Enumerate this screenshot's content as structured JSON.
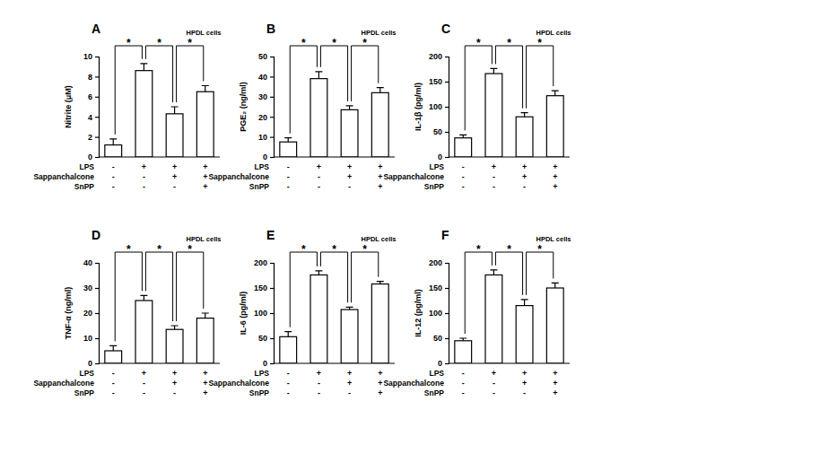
{
  "chart_data": [
    {
      "type": "bar",
      "panel": "A",
      "annotation": "HPDL cells",
      "y_label": "Nitrite (μM)",
      "values": [
        1.2,
        8.6,
        4.3,
        6.5
      ],
      "errors": [
        0.6,
        0.7,
        0.7,
        0.6
      ],
      "ylim": [
        0,
        10
      ],
      "yticks": [
        0,
        2,
        4,
        6,
        8,
        10
      ],
      "significance": [
        {
          "from": 0,
          "to": 1,
          "label": "*"
        },
        {
          "from": 1,
          "to": 2,
          "label": "*"
        },
        {
          "from": 2,
          "to": 3,
          "label": "*"
        }
      ],
      "treatments": [
        {
          "name": "LPS",
          "signs": [
            "-",
            "+",
            "+",
            "+"
          ]
        },
        {
          "name": "Sappanchalcone",
          "signs": [
            "-",
            "-",
            "+",
            "+"
          ]
        },
        {
          "name": "SnPP",
          "signs": [
            "-",
            "-",
            "-",
            "+"
          ]
        }
      ]
    },
    {
      "type": "bar",
      "panel": "B",
      "annotation": "HPDL cells",
      "y_label": "PGE₂ (ng/ml)",
      "values": [
        7.5,
        39,
        23.5,
        32
      ],
      "errors": [
        2,
        3.5,
        2,
        2.5
      ],
      "ylim": [
        0,
        50
      ],
      "yticks": [
        0,
        10,
        20,
        30,
        40,
        50
      ],
      "significance": [
        {
          "from": 0,
          "to": 1,
          "label": "*"
        },
        {
          "from": 1,
          "to": 2,
          "label": "*"
        },
        {
          "from": 2,
          "to": 3,
          "label": "*"
        }
      ],
      "treatments": [
        {
          "name": "LPS",
          "signs": [
            "-",
            "+",
            "+",
            "+"
          ]
        },
        {
          "name": "Sappanchalcone",
          "signs": [
            "-",
            "-",
            "+",
            "+"
          ]
        },
        {
          "name": "SnPP",
          "signs": [
            "-",
            "-",
            "-",
            "+"
          ]
        }
      ]
    },
    {
      "type": "bar",
      "panel": "C",
      "annotation": "HPDL cells",
      "y_label": "IL-1β (pg/ml)",
      "values": [
        38,
        166,
        80,
        122
      ],
      "errors": [
        6,
        10,
        8,
        10
      ],
      "ylim": [
        0,
        200
      ],
      "yticks": [
        0,
        50,
        100,
        150,
        200
      ],
      "significance": [
        {
          "from": 0,
          "to": 1,
          "label": "*"
        },
        {
          "from": 1,
          "to": 2,
          "label": "*"
        },
        {
          "from": 2,
          "to": 3,
          "label": "*"
        }
      ],
      "treatments": [
        {
          "name": "LPS",
          "signs": [
            "-",
            "+",
            "+",
            "+"
          ]
        },
        {
          "name": "Sappanchalcone",
          "signs": [
            "-",
            "-",
            "+",
            "+"
          ]
        },
        {
          "name": "SnPP",
          "signs": [
            "-",
            "-",
            "-",
            "+"
          ]
        }
      ]
    },
    {
      "type": "bar",
      "panel": "D",
      "annotation": "HPDL cells",
      "y_label": "TNF-α (ng/ml)",
      "values": [
        5,
        25,
        13.5,
        18
      ],
      "errors": [
        2,
        2,
        1.5,
        2
      ],
      "ylim": [
        0,
        40
      ],
      "yticks": [
        0,
        10,
        20,
        30,
        40
      ],
      "significance": [
        {
          "from": 0,
          "to": 1,
          "label": "*"
        },
        {
          "from": 1,
          "to": 2,
          "label": "*"
        },
        {
          "from": 2,
          "to": 3,
          "label": "*"
        }
      ],
      "treatments": [
        {
          "name": "LPS",
          "signs": [
            "-",
            "+",
            "+",
            "+"
          ]
        },
        {
          "name": "Sappanchalcone",
          "signs": [
            "-",
            "-",
            "+",
            "+"
          ]
        },
        {
          "name": "SnPP",
          "signs": [
            "-",
            "-",
            "-",
            "+"
          ]
        }
      ]
    },
    {
      "type": "bar",
      "panel": "E",
      "annotation": "HPDL cells",
      "y_label": "IL-6 (pg/ml)",
      "values": [
        53,
        176,
        107,
        158
      ],
      "errors": [
        10,
        8,
        5,
        5
      ],
      "ylim": [
        0,
        200
      ],
      "yticks": [
        0,
        50,
        100,
        150,
        200
      ],
      "significance": [
        {
          "from": 0,
          "to": 1,
          "label": "*"
        },
        {
          "from": 1,
          "to": 2,
          "label": "*"
        },
        {
          "from": 2,
          "to": 3,
          "label": "*"
        }
      ],
      "treatments": [
        {
          "name": "LPS",
          "signs": [
            "-",
            "+",
            "+",
            "+"
          ]
        },
        {
          "name": "Sappanchalcone",
          "signs": [
            "-",
            "-",
            "+",
            "+"
          ]
        },
        {
          "name": "SnPP",
          "signs": [
            "-",
            "-",
            "-",
            "+"
          ]
        }
      ]
    },
    {
      "type": "bar",
      "panel": "F",
      "annotation": "HPDL cells",
      "y_label": "IL-12 (pg/ml)",
      "values": [
        45,
        176,
        115,
        150
      ],
      "errors": [
        5,
        10,
        12,
        10
      ],
      "ylim": [
        0,
        200
      ],
      "yticks": [
        0,
        50,
        100,
        150,
        200
      ],
      "significance": [
        {
          "from": 0,
          "to": 1,
          "label": "*"
        },
        {
          "from": 1,
          "to": 2,
          "label": "*"
        },
        {
          "from": 2,
          "to": 3,
          "label": "*"
        }
      ],
      "treatments": [
        {
          "name": "LPS",
          "signs": [
            "-",
            "+",
            "+",
            "+"
          ]
        },
        {
          "name": "Sappanchalcone",
          "signs": [
            "-",
            "-",
            "+",
            "+"
          ]
        },
        {
          "name": "SnPP",
          "signs": [
            "-",
            "-",
            "-",
            "+"
          ]
        }
      ]
    }
  ]
}
